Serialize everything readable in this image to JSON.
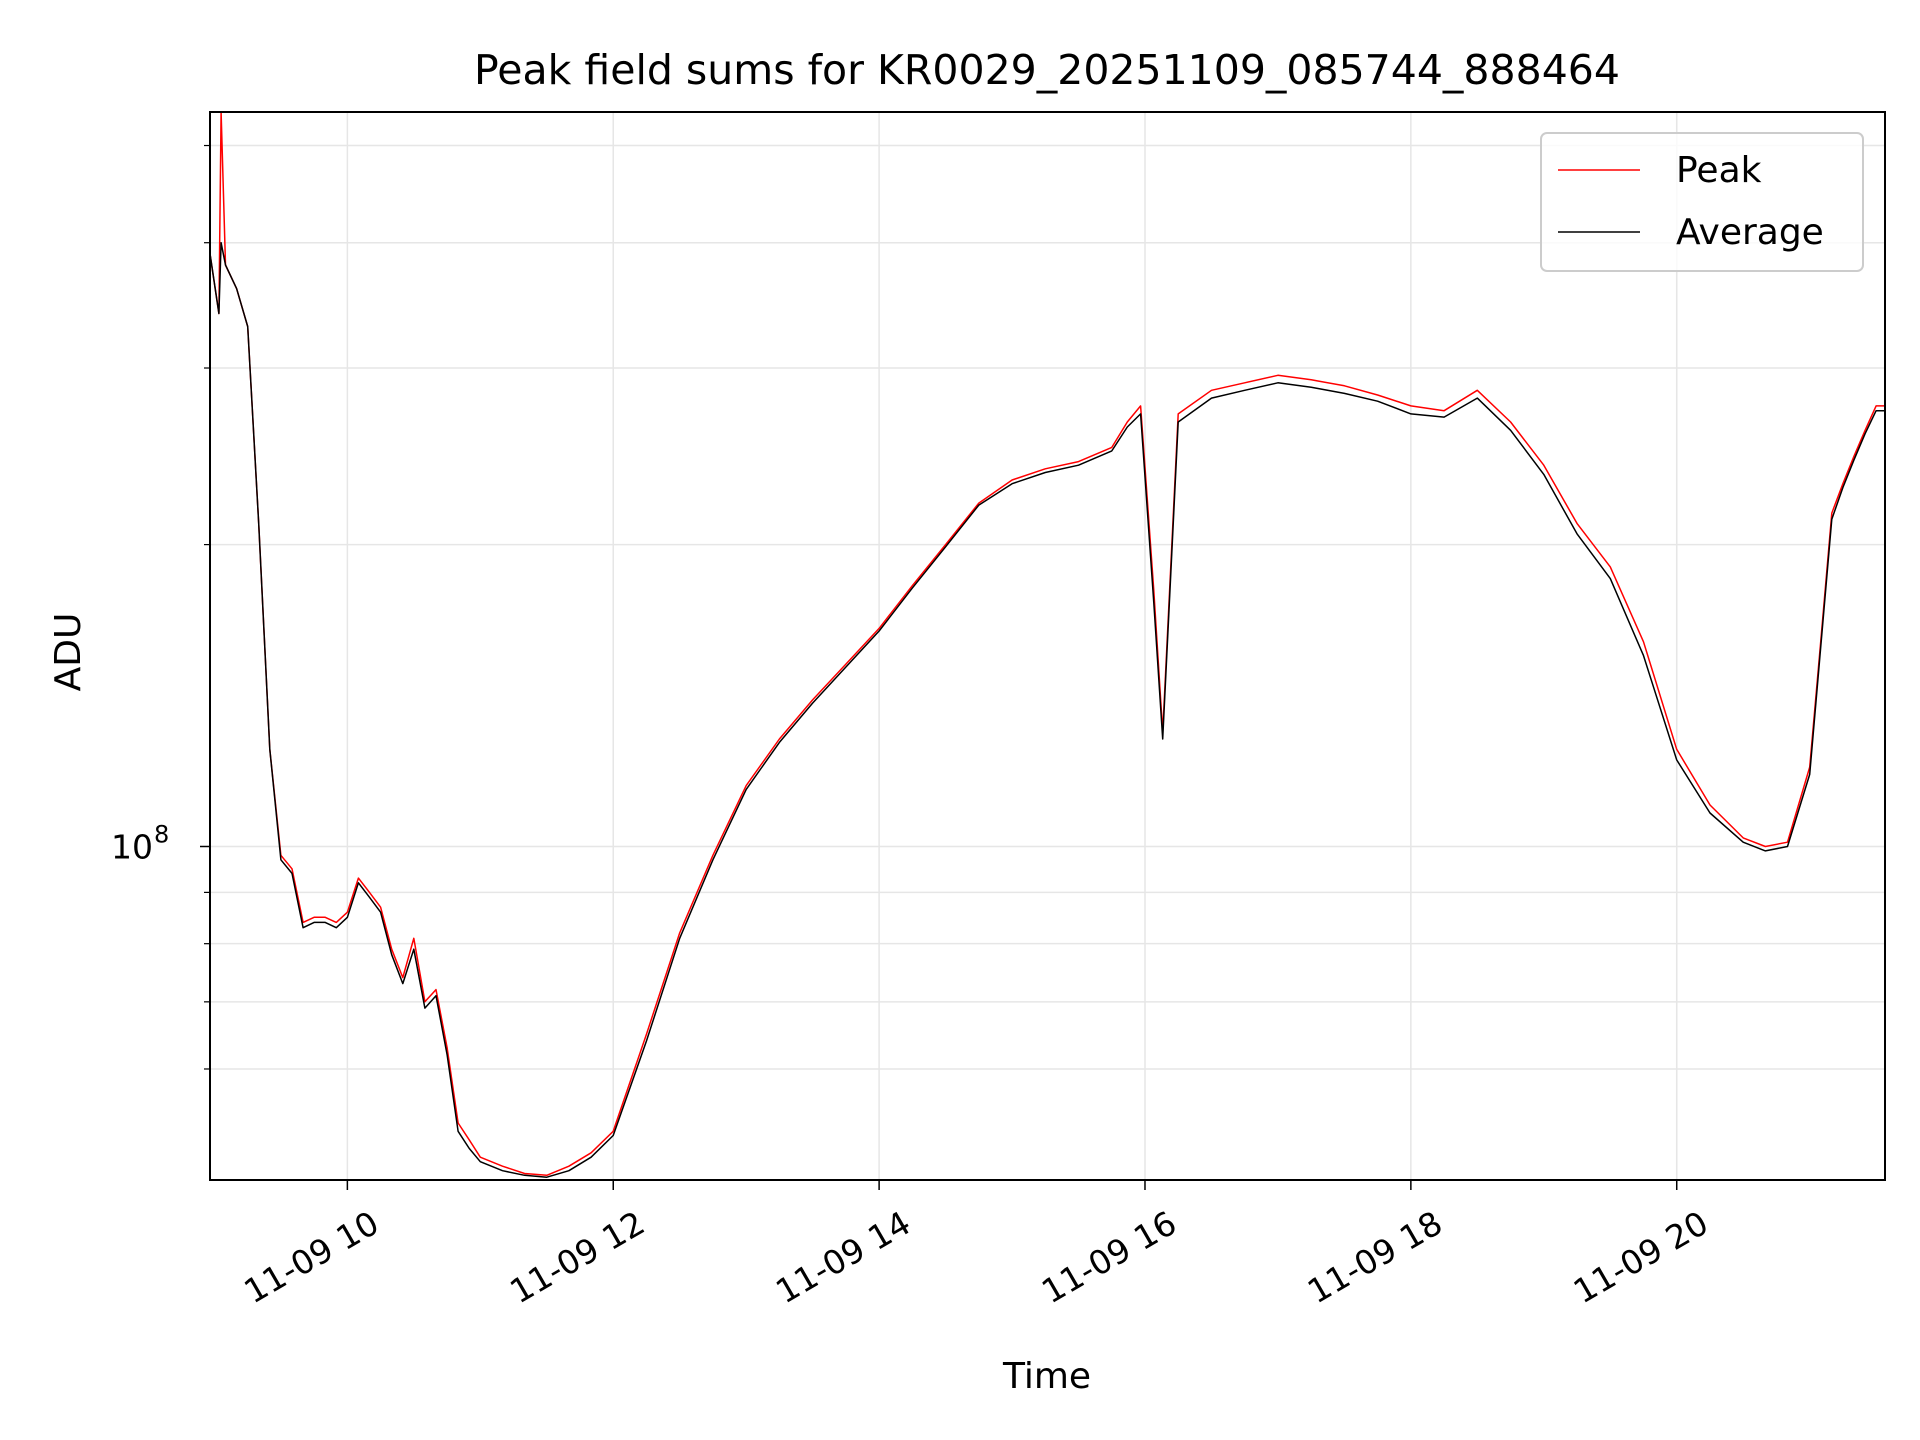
{
  "chart_data": {
    "type": "line",
    "title": "Peak field sums for KR0029_20251109_085744_888464",
    "xlabel": "Time",
    "ylabel": "ADU",
    "yscale": "log",
    "grid": true,
    "legend_position": "top-right",
    "x_range": [
      "2025-11-09 08:58",
      "2025-11-09 21:34"
    ],
    "y_range": [
      46500000,
      540000000
    ],
    "x_ticks": [
      {
        "t": "2025-11-09 10:00",
        "label": "11-09 10"
      },
      {
        "t": "2025-11-09 12:00",
        "label": "11-09 12"
      },
      {
        "t": "2025-11-09 14:00",
        "label": "11-09 14"
      },
      {
        "t": "2025-11-09 16:00",
        "label": "11-09 16"
      },
      {
        "t": "2025-11-09 18:00",
        "label": "11-09 18"
      },
      {
        "t": "2025-11-09 20:00",
        "label": "11-09 20"
      }
    ],
    "y_ticks": [
      {
        "value": 100000000,
        "base": "10",
        "exp": "8"
      }
    ],
    "y_minor_ticks": [
      60000000,
      70000000,
      80000000,
      90000000,
      200000000,
      300000000,
      400000000,
      500000000
    ],
    "series": [
      {
        "name": "Peak",
        "color": "#ff0000",
        "x": [
          "2025-11-09 08:58",
          "2025-11-09 09:02",
          "2025-11-09 09:03",
          "2025-11-09 09:05",
          "2025-11-09 09:10",
          "2025-11-09 09:15",
          "2025-11-09 09:20",
          "2025-11-09 09:25",
          "2025-11-09 09:30",
          "2025-11-09 09:35",
          "2025-11-09 09:40",
          "2025-11-09 09:45",
          "2025-11-09 09:50",
          "2025-11-09 09:55",
          "2025-11-09 10:00",
          "2025-11-09 10:05",
          "2025-11-09 10:10",
          "2025-11-09 10:15",
          "2025-11-09 10:20",
          "2025-11-09 10:25",
          "2025-11-09 10:30",
          "2025-11-09 10:35",
          "2025-11-09 10:40",
          "2025-11-09 10:45",
          "2025-11-09 10:50",
          "2025-11-09 10:55",
          "2025-11-09 11:00",
          "2025-11-09 11:10",
          "2025-11-09 11:20",
          "2025-11-09 11:30",
          "2025-11-09 11:40",
          "2025-11-09 11:50",
          "2025-11-09 12:00",
          "2025-11-09 12:15",
          "2025-11-09 12:30",
          "2025-11-09 12:45",
          "2025-11-09 13:00",
          "2025-11-09 13:15",
          "2025-11-09 13:30",
          "2025-11-09 13:45",
          "2025-11-09 14:00",
          "2025-11-09 14:15",
          "2025-11-09 14:30",
          "2025-11-09 14:45",
          "2025-11-09 15:00",
          "2025-11-09 15:15",
          "2025-11-09 15:30",
          "2025-11-09 15:45",
          "2025-11-09 15:52",
          "2025-11-09 15:58",
          "2025-11-09 16:04",
          "2025-11-09 16:08",
          "2025-11-09 16:15",
          "2025-11-09 16:30",
          "2025-11-09 16:45",
          "2025-11-09 17:00",
          "2025-11-09 17:15",
          "2025-11-09 17:30",
          "2025-11-09 17:45",
          "2025-11-09 18:00",
          "2025-11-09 18:15",
          "2025-11-09 18:30",
          "2025-11-09 18:45",
          "2025-11-09 19:00",
          "2025-11-09 19:15",
          "2025-11-09 19:30",
          "2025-11-09 19:45",
          "2025-11-09 20:00",
          "2025-11-09 20:15",
          "2025-11-09 20:30",
          "2025-11-09 20:40",
          "2025-11-09 20:50",
          "2025-11-09 21:00",
          "2025-11-09 21:05",
          "2025-11-09 21:10",
          "2025-11-09 21:15",
          "2025-11-09 21:20",
          "2025-11-09 21:25",
          "2025-11-09 21:30",
          "2025-11-09 21:34"
        ],
        "y": [
          390000000,
          340000000,
          540000000,
          380000000,
          360000000,
          330000000,
          210000000,
          125000000,
          98000000,
          95000000,
          84000000,
          85000000,
          85000000,
          84000000,
          86000000,
          93000000,
          90000000,
          87000000,
          79000000,
          74000000,
          81000000,
          70000000,
          72000000,
          63000000,
          53000000,
          51000000,
          49000000,
          48000000,
          47200000,
          47000000,
          48000000,
          49500000,
          52000000,
          65000000,
          82000000,
          98000000,
          115000000,
          128000000,
          140000000,
          152000000,
          165000000,
          182000000,
          200000000,
          220000000,
          232000000,
          238000000,
          242000000,
          250000000,
          265000000,
          275000000,
          180000000,
          130000000,
          270000000,
          285000000,
          290000000,
          295000000,
          292000000,
          288000000,
          282000000,
          275000000,
          272000000,
          285000000,
          265000000,
          240000000,
          210000000,
          190000000,
          160000000,
          125000000,
          110000000,
          102000000,
          100000000,
          101000000,
          120000000,
          160000000,
          215000000,
          230000000,
          245000000,
          260000000,
          275000000,
          275000000
        ]
      },
      {
        "name": "Average",
        "color": "#000000",
        "x": [
          "2025-11-09 08:58",
          "2025-11-09 09:02",
          "2025-11-09 09:03",
          "2025-11-09 09:05",
          "2025-11-09 09:10",
          "2025-11-09 09:15",
          "2025-11-09 09:20",
          "2025-11-09 09:25",
          "2025-11-09 09:30",
          "2025-11-09 09:35",
          "2025-11-09 09:40",
          "2025-11-09 09:45",
          "2025-11-09 09:50",
          "2025-11-09 09:55",
          "2025-11-09 10:00",
          "2025-11-09 10:05",
          "2025-11-09 10:10",
          "2025-11-09 10:15",
          "2025-11-09 10:20",
          "2025-11-09 10:25",
          "2025-11-09 10:30",
          "2025-11-09 10:35",
          "2025-11-09 10:40",
          "2025-11-09 10:45",
          "2025-11-09 10:50",
          "2025-11-09 10:55",
          "2025-11-09 11:00",
          "2025-11-09 11:10",
          "2025-11-09 11:20",
          "2025-11-09 11:30",
          "2025-11-09 11:40",
          "2025-11-09 11:50",
          "2025-11-09 12:00",
          "2025-11-09 12:15",
          "2025-11-09 12:30",
          "2025-11-09 12:45",
          "2025-11-09 13:00",
          "2025-11-09 13:15",
          "2025-11-09 13:30",
          "2025-11-09 13:45",
          "2025-11-09 14:00",
          "2025-11-09 14:15",
          "2025-11-09 14:30",
          "2025-11-09 14:45",
          "2025-11-09 15:00",
          "2025-11-09 15:15",
          "2025-11-09 15:30",
          "2025-11-09 15:45",
          "2025-11-09 15:52",
          "2025-11-09 15:58",
          "2025-11-09 16:04",
          "2025-11-09 16:08",
          "2025-11-09 16:15",
          "2025-11-09 16:30",
          "2025-11-09 16:45",
          "2025-11-09 17:00",
          "2025-11-09 17:15",
          "2025-11-09 17:30",
          "2025-11-09 17:45",
          "2025-11-09 18:00",
          "2025-11-09 18:15",
          "2025-11-09 18:30",
          "2025-11-09 18:45",
          "2025-11-09 19:00",
          "2025-11-09 19:15",
          "2025-11-09 19:30",
          "2025-11-09 19:45",
          "2025-11-09 20:00",
          "2025-11-09 20:15",
          "2025-11-09 20:30",
          "2025-11-09 20:40",
          "2025-11-09 20:50",
          "2025-11-09 21:00",
          "2025-11-09 21:05",
          "2025-11-09 21:10",
          "2025-11-09 21:15",
          "2025-11-09 21:20",
          "2025-11-09 21:25",
          "2025-11-09 21:30",
          "2025-11-09 21:34"
        ],
        "y": [
          390000000,
          340000000,
          400000000,
          380000000,
          360000000,
          330000000,
          210000000,
          125000000,
          97000000,
          94000000,
          83000000,
          84000000,
          84000000,
          83000000,
          85000000,
          92000000,
          89000000,
          86000000,
          78000000,
          73000000,
          79000000,
          69000000,
          71000000,
          62000000,
          52000000,
          50000000,
          48500000,
          47500000,
          47000000,
          46800000,
          47500000,
          49000000,
          51500000,
          64000000,
          81000000,
          97000000,
          114000000,
          127000000,
          139000000,
          151000000,
          164000000,
          181000000,
          199000000,
          219000000,
          230000000,
          236000000,
          240000000,
          248000000,
          262000000,
          270000000,
          175000000,
          128000000,
          265000000,
          280000000,
          285000000,
          290000000,
          287000000,
          283000000,
          278000000,
          270000000,
          268000000,
          280000000,
          260000000,
          235000000,
          205000000,
          185000000,
          155000000,
          122000000,
          108000000,
          101000000,
          99000000,
          100000000,
          118000000,
          158000000,
          212000000,
          228000000,
          243000000,
          258000000,
          272000000,
          272000000
        ]
      }
    ]
  }
}
